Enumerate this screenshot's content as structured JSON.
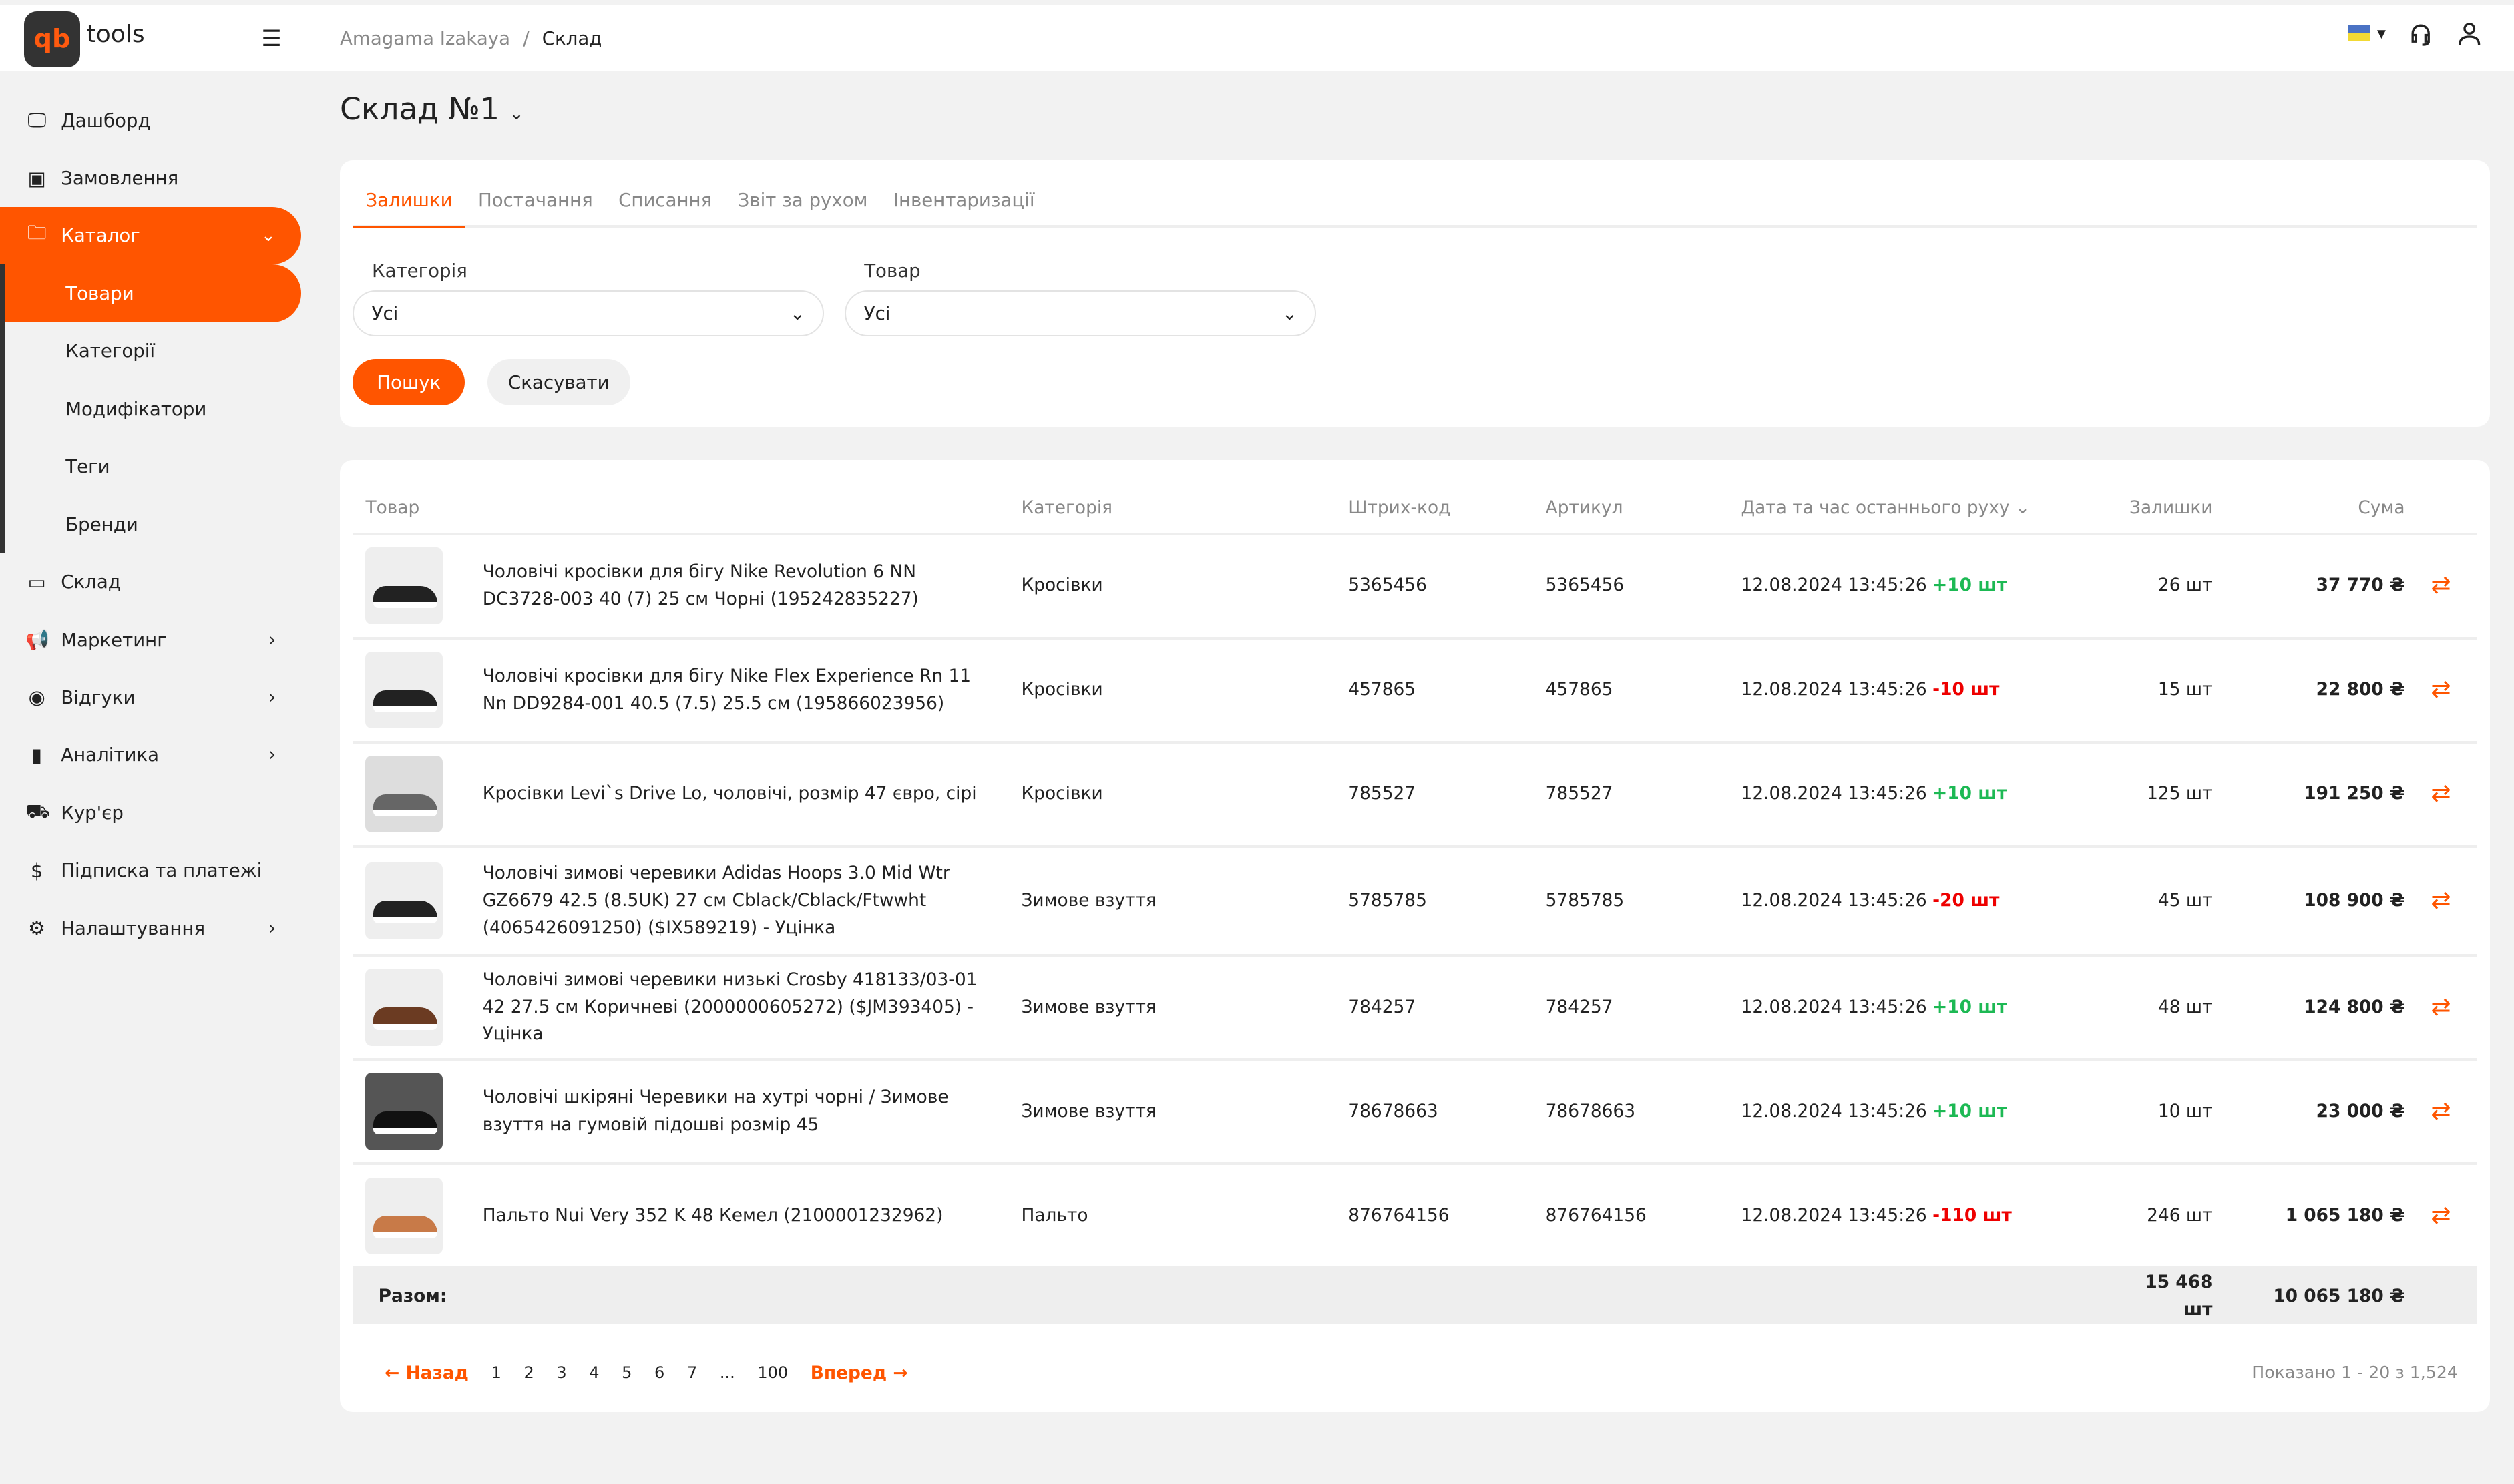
{
  "app": {
    "logo": "qb",
    "name": "tools"
  },
  "breadcrumb": [
    "Amagama Izakaya",
    "Склад"
  ],
  "sidebar": {
    "items": [
      {
        "label": "Дашборд",
        "icon": "monitor-icon"
      },
      {
        "label": "Замовлення",
        "icon": "orders-icon"
      },
      {
        "label": "Каталог",
        "icon": "folder-icon",
        "active": true,
        "expanded": true
      },
      {
        "label": "Товари",
        "sub": true,
        "active": true
      },
      {
        "label": "Категорії",
        "sub": true
      },
      {
        "label": "Модифікатори",
        "sub": true
      },
      {
        "label": "Теги",
        "sub": true
      },
      {
        "label": "Бренди",
        "sub": true
      },
      {
        "label": "Склад",
        "icon": "inbox-icon"
      },
      {
        "label": "Маркетинг",
        "icon": "megaphone-icon",
        "chevron": true
      },
      {
        "label": "Відгуки",
        "icon": "eye-icon",
        "chevron": true
      },
      {
        "label": "Аналітика",
        "icon": "chart-icon",
        "chevron": true
      },
      {
        "label": "Кур'єр",
        "icon": "truck-icon"
      },
      {
        "label": "Підписка та платежі",
        "icon": "dollar-icon"
      },
      {
        "label": "Налаштування",
        "icon": "gear-icon",
        "chevron": true
      }
    ]
  },
  "page": {
    "title": "Склад №1"
  },
  "tabs": [
    "Залишки",
    "Постачання",
    "Списання",
    "Звіт за рухом",
    "Інвентаризації"
  ],
  "filters": {
    "category_label": "Категорія",
    "category_value": "Усі",
    "product_label": "Товар",
    "product_value": "Усі",
    "search": "Пошук",
    "cancel": "Скасувати"
  },
  "table": {
    "headers": [
      "Товар",
      "Категорія",
      "Штрих-код",
      "Артикул",
      "Дата та час останнього руху",
      "Залишки",
      "Сума"
    ],
    "rows": [
      {
        "name": "Чоловічі кросівки для бігу Nike Revolution 6 NN DC3728-003 40 (7) 25 см Чорні (195242835227)",
        "category": "Кросівки",
        "barcode": "5365456",
        "article": "5365456",
        "date": "12.08.2024 13:45:26",
        "delta": "+10 шт",
        "stock": "26 шт",
        "sum": "37 770 ₴"
      },
      {
        "name": "Чоловічі кросівки для бігу Nike Flex Experience Rn 11 Nn DD9284-001 40.5 (7.5) 25.5 см (195866023956)",
        "category": "Кросівки",
        "barcode": "457865",
        "article": "457865",
        "date": "12.08.2024 13:45:26",
        "delta": "-10 шт",
        "stock": "15 шт",
        "sum": "22 800 ₴"
      },
      {
        "name": "Кросівки Levi`s Drive Lo, чоловічі, розмір 47 євро, сірі",
        "category": "Кросівки",
        "barcode": "785527",
        "article": "785527",
        "date": "12.08.2024 13:45:26",
        "delta": "+10 шт",
        "stock": "125 шт",
        "sum": "191 250 ₴"
      },
      {
        "name": "Чоловічі зимові черевики Adidas Hoops 3.0 Mid Wtr GZ6679 42.5 (8.5UK) 27 см Cblack/Cblack/Ftwwht (4065426091250) ($IX589219) - Уцінка",
        "category": "Зимове взуття",
        "barcode": "5785785",
        "article": "5785785",
        "date": "12.08.2024 13:45:26",
        "delta": "-20 шт",
        "stock": "45 шт",
        "sum": "108 900 ₴"
      },
      {
        "name": "Чоловічі зимові черевики низькі Crosby 418133/03-01 42 27.5 см Коричневі (2000000605272) ($JM393405) - Уцінка",
        "category": "Зимове взуття",
        "barcode": "784257",
        "article": "784257",
        "date": "12.08.2024 13:45:26",
        "delta": "+10 шт",
        "stock": "48 шт",
        "sum": "124 800 ₴"
      },
      {
        "name": "Чоловічі шкіряні Черевики на хутрі чорні / Зимове взуття на гумовій підошві розмір 45",
        "category": "Зимове взуття",
        "barcode": "78678663",
        "article": "78678663",
        "date": "12.08.2024 13:45:26",
        "delta": "+10 шт",
        "stock": "10 шт",
        "sum": "23 000 ₴"
      },
      {
        "name": "Пальто Nui Very 352 K 48 Кемел (2100001232962)",
        "category": "Пальто",
        "barcode": "876764156",
        "article": "876764156",
        "date": "12.08.2024 13:45:26",
        "delta": "-110 шт",
        "stock": "246 шт",
        "sum": "1 065 180 ₴"
      }
    ],
    "total": {
      "label": "Разом:",
      "stock": "15 468 шт",
      "sum": "10 065 180 ₴"
    }
  },
  "pagination": {
    "prev": "← Назад",
    "next": "Вперед →",
    "pages": [
      "1",
      "2",
      "3",
      "4",
      "5",
      "6",
      "7",
      "...",
      "100"
    ],
    "shown": "Показано 1 - 20 з 1,524"
  },
  "colors": {
    "accent": "#ff5500",
    "plus": "#1db954",
    "minus": "#e00000"
  }
}
